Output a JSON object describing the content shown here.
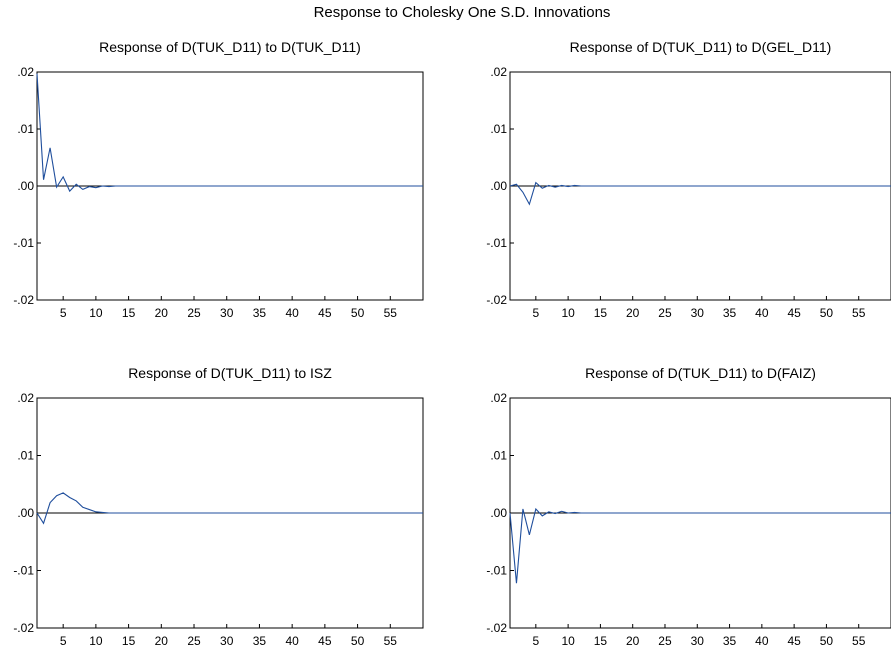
{
  "title": "Response to Cholesky One S.D. Innovations",
  "colors": {
    "line": "#1f4e9c",
    "axis": "#000000"
  },
  "chart_data": [
    {
      "type": "line",
      "title": "Response of D(TUK_D11) to D(TUK_D11)",
      "x_range": [
        1,
        60
      ],
      "ylim": [
        -0.02,
        0.02
      ],
      "y_ticks": [
        0.02,
        0.01,
        0.0,
        -0.01,
        -0.02
      ],
      "y_tick_labels": [
        ".02",
        ".01",
        ".00",
        "-.01",
        "-.02"
      ],
      "x_ticks": [
        5,
        10,
        15,
        20,
        25,
        30,
        35,
        40,
        45,
        50,
        55
      ],
      "x_tick_labels": [
        "5",
        "10",
        "15",
        "20",
        "25",
        "30",
        "35",
        "40",
        "45",
        "50",
        "55"
      ],
      "grid": false,
      "series": [
        {
          "x": [
            1,
            2,
            3,
            4,
            5,
            6,
            7,
            8,
            9,
            10,
            11,
            12,
            13,
            14,
            15,
            16,
            17,
            18,
            19,
            20,
            21,
            22,
            23,
            24,
            25,
            26,
            27,
            28,
            29,
            30,
            31,
            32,
            33,
            34,
            35,
            36,
            37,
            38,
            39,
            40,
            41,
            42,
            43,
            44,
            45,
            46,
            47,
            48,
            49,
            50,
            51,
            52,
            53,
            54,
            55,
            56,
            57,
            58,
            59,
            60
          ],
          "values": [
            0.0197,
            0.0011,
            0.0067,
            -0.0002,
            0.0016,
            -0.0009,
            0.0003,
            -0.0006,
            -0.0001,
            -0.0003,
            0.0,
            -0.0001,
            0.0,
            0,
            0,
            0,
            0,
            0,
            0,
            0,
            0,
            0,
            0,
            0,
            0,
            0,
            0,
            0,
            0,
            0,
            0,
            0,
            0,
            0,
            0,
            0,
            0,
            0,
            0,
            0,
            0,
            0,
            0,
            0,
            0,
            0,
            0,
            0,
            0,
            0,
            0,
            0,
            0,
            0,
            0,
            0,
            0,
            0,
            0,
            0
          ]
        }
      ]
    },
    {
      "type": "line",
      "title": "Response of D(TUK_D11) to D(GEL_D11)",
      "x_range": [
        1,
        60
      ],
      "ylim": [
        -0.02,
        0.02
      ],
      "y_ticks": [
        0.02,
        0.01,
        0.0,
        -0.01,
        -0.02
      ],
      "y_tick_labels": [
        ".02",
        ".01",
        ".00",
        "-.01",
        "-.02"
      ],
      "x_ticks": [
        5,
        10,
        15,
        20,
        25,
        30,
        35,
        40,
        45,
        50,
        55
      ],
      "x_tick_labels": [
        "5",
        "10",
        "15",
        "20",
        "25",
        "30",
        "35",
        "40",
        "45",
        "50",
        "55"
      ],
      "grid": false,
      "series": [
        {
          "x": [
            1,
            2,
            3,
            4,
            5,
            6,
            7,
            8,
            9,
            10,
            11,
            12,
            13,
            14,
            15,
            16,
            17,
            18,
            19,
            20,
            21,
            22,
            23,
            24,
            25,
            26,
            27,
            28,
            29,
            30,
            31,
            32,
            33,
            34,
            35,
            36,
            37,
            38,
            39,
            40,
            41,
            42,
            43,
            44,
            45,
            46,
            47,
            48,
            49,
            50,
            51,
            52,
            53,
            54,
            55,
            56,
            57,
            58,
            59,
            60
          ],
          "values": [
            0.0,
            0.0003,
            -0.0011,
            -0.0032,
            0.0006,
            -0.0004,
            0.0001,
            -0.0002,
            0.0001,
            -0.0001,
            0.0001,
            0.0,
            0.0,
            0,
            0,
            0,
            0,
            0,
            0,
            0,
            0,
            0,
            0,
            0,
            0,
            0,
            0,
            0,
            0,
            0,
            0,
            0,
            0,
            0,
            0,
            0,
            0,
            0,
            0,
            0,
            0,
            0,
            0,
            0,
            0,
            0,
            0,
            0,
            0,
            0,
            0,
            0,
            0,
            0,
            0,
            0,
            0,
            0,
            0,
            0
          ]
        }
      ]
    },
    {
      "type": "line",
      "title": "Response of D(TUK_D11) to ISZ",
      "x_range": [
        1,
        60
      ],
      "ylim": [
        -0.02,
        0.02
      ],
      "y_ticks": [
        0.02,
        0.01,
        0.0,
        -0.01,
        -0.02
      ],
      "y_tick_labels": [
        ".02",
        ".01",
        ".00",
        "-.01",
        "-.02"
      ],
      "x_ticks": [
        5,
        10,
        15,
        20,
        25,
        30,
        35,
        40,
        45,
        50,
        55
      ],
      "x_tick_labels": [
        "5",
        "10",
        "15",
        "20",
        "25",
        "30",
        "35",
        "40",
        "45",
        "50",
        "55"
      ],
      "grid": false,
      "series": [
        {
          "x": [
            1,
            2,
            3,
            4,
            5,
            6,
            7,
            8,
            9,
            10,
            11,
            12,
            13,
            14,
            15,
            16,
            17,
            18,
            19,
            20,
            21,
            22,
            23,
            24,
            25,
            26,
            27,
            28,
            29,
            30,
            31,
            32,
            33,
            34,
            35,
            36,
            37,
            38,
            39,
            40,
            41,
            42,
            43,
            44,
            45,
            46,
            47,
            48,
            49,
            50,
            51,
            52,
            53,
            54,
            55,
            56,
            57,
            58,
            59,
            60
          ],
          "values": [
            0.0,
            -0.0018,
            0.0018,
            0.003,
            0.0035,
            0.0027,
            0.0021,
            0.001,
            0.0006,
            0.0002,
            0.0001,
            0.0,
            0.0,
            0,
            0,
            0,
            0,
            0,
            0,
            0,
            0,
            0,
            0,
            0,
            0,
            0,
            0,
            0,
            0,
            0,
            0,
            0,
            0,
            0,
            0,
            0,
            0,
            0,
            0,
            0,
            0,
            0,
            0,
            0,
            0,
            0,
            0,
            0,
            0,
            0,
            0,
            0,
            0,
            0,
            0,
            0,
            0,
            0,
            0,
            0
          ]
        }
      ]
    },
    {
      "type": "line",
      "title": "Response of D(TUK_D11) to D(FAIZ)",
      "x_range": [
        1,
        60
      ],
      "ylim": [
        -0.02,
        0.02
      ],
      "y_ticks": [
        0.02,
        0.01,
        0.0,
        -0.01,
        -0.02
      ],
      "y_tick_labels": [
        ".02",
        ".01",
        ".00",
        "-.01",
        "-.02"
      ],
      "x_ticks": [
        5,
        10,
        15,
        20,
        25,
        30,
        35,
        40,
        45,
        50,
        55
      ],
      "x_tick_labels": [
        "5",
        "10",
        "15",
        "20",
        "25",
        "30",
        "35",
        "40",
        "45",
        "50",
        "55"
      ],
      "grid": false,
      "series": [
        {
          "x": [
            1,
            2,
            3,
            4,
            5,
            6,
            7,
            8,
            9,
            10,
            11,
            12,
            13,
            14,
            15,
            16,
            17,
            18,
            19,
            20,
            21,
            22,
            23,
            24,
            25,
            26,
            27,
            28,
            29,
            30,
            31,
            32,
            33,
            34,
            35,
            36,
            37,
            38,
            39,
            40,
            41,
            42,
            43,
            44,
            45,
            46,
            47,
            48,
            49,
            50,
            51,
            52,
            53,
            54,
            55,
            56,
            57,
            58,
            59,
            60
          ],
          "values": [
            0.0,
            -0.0122,
            0.0007,
            -0.0038,
            0.0007,
            -0.0005,
            0.0002,
            -0.0001,
            0.0003,
            0.0,
            0.0001,
            0.0,
            0.0,
            0,
            0,
            0,
            0,
            0,
            0,
            0,
            0,
            0,
            0,
            0,
            0,
            0,
            0,
            0,
            0,
            0,
            0,
            0,
            0,
            0,
            0,
            0,
            0,
            0,
            0,
            0,
            0,
            0,
            0,
            0,
            0,
            0,
            0,
            0,
            0,
            0,
            0,
            0,
            0,
            0,
            0,
            0,
            0,
            0,
            0,
            0
          ]
        }
      ]
    }
  ]
}
